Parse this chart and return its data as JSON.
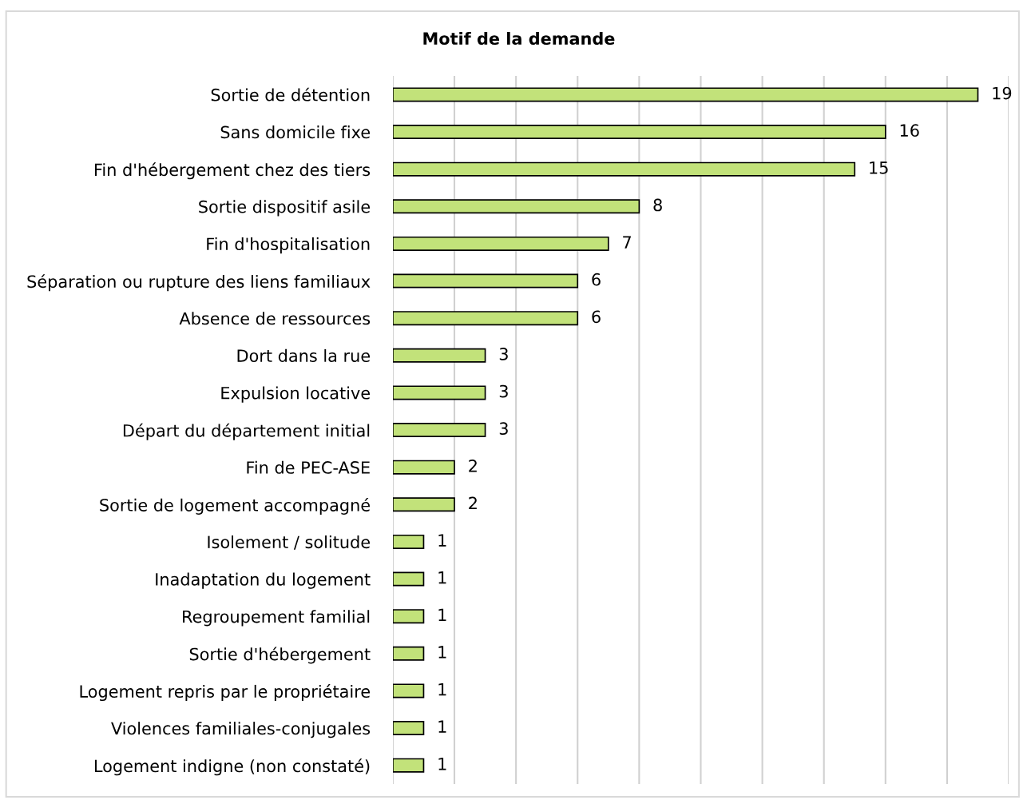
{
  "chart_data": {
    "type": "bar",
    "orientation": "horizontal",
    "title": "Motif de la demande",
    "categories": [
      "Sortie de détention",
      "Sans domicile fixe",
      "Fin d'hébergement chez des tiers",
      "Sortie dispositif asile",
      "Fin d'hospitalisation",
      "Séparation ou rupture des liens familiaux",
      "Absence de ressources",
      "Dort dans la rue",
      "Expulsion locative",
      "Départ du département initial",
      "Fin de PEC-ASE",
      "Sortie de logement accompagné",
      "Isolement / solitude",
      "Inadaptation du logement",
      "Regroupement familial",
      "Sortie d'hébergement",
      "Logement repris par le propriétaire",
      "Violences familiales-conjugales",
      "Logement indigne (non constaté)"
    ],
    "values": [
      19,
      16,
      15,
      8,
      7,
      6,
      6,
      3,
      3,
      3,
      2,
      2,
      1,
      1,
      1,
      1,
      1,
      1,
      1
    ],
    "color": "#c2e27a",
    "xlim": [
      0,
      20
    ],
    "xticks": [
      {
        "value": 0,
        "label": null
      },
      {
        "value": 2,
        "label": null
      },
      {
        "value": 4,
        "label": null
      },
      {
        "value": 6,
        "label": null
      },
      {
        "value": 8,
        "label": null
      },
      {
        "value": 10,
        "label": null
      },
      {
        "value": 12,
        "label": null
      },
      {
        "value": 14,
        "label": null
      },
      {
        "value": 16,
        "label": null
      },
      {
        "value": 18,
        "label": null
      },
      {
        "value": 20,
        "label": null
      }
    ],
    "tick_labels": "y",
    "grid": "x",
    "data_labels": true,
    "legend": false
  }
}
